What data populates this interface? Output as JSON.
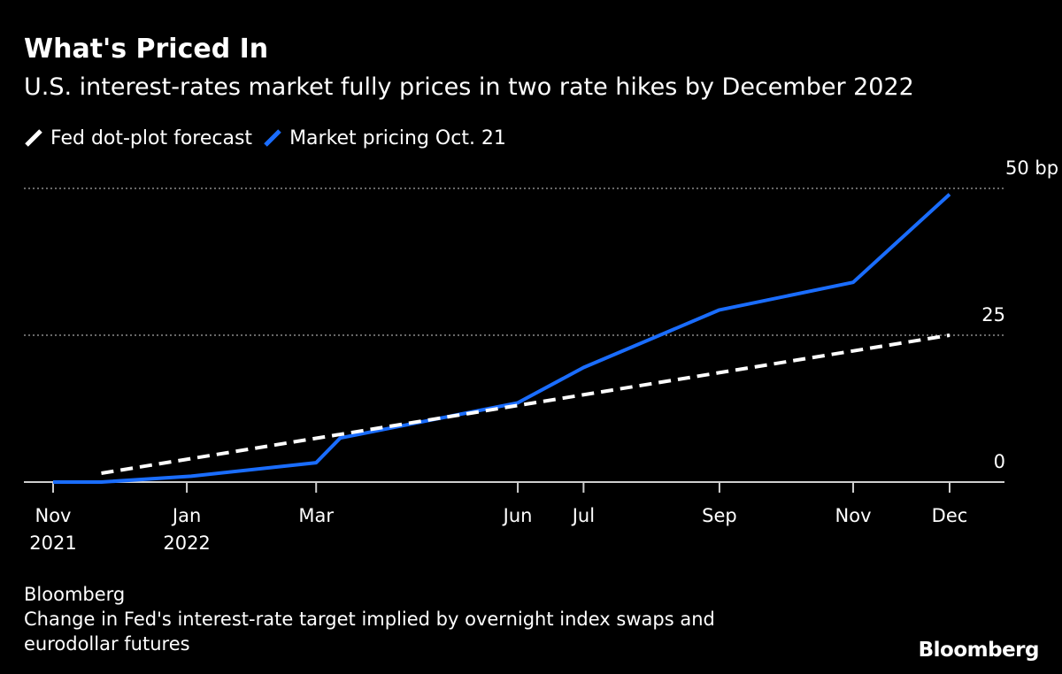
{
  "header": {
    "title": "What's Priced In",
    "subtitle": "U.S. interest-rates market fully prices in two rate hikes by December 2022"
  },
  "legend": [
    {
      "label": "Fed dot-plot forecast",
      "color": "#ffffff",
      "style": "dashed"
    },
    {
      "label": "Market pricing Oct. 21",
      "color": "#1a6dff",
      "style": "solid"
    }
  ],
  "footer": {
    "source": "Bloomberg",
    "note_lines": [
      "Change in Fed's interest-rate target implied by overnight index swaps and",
      "eurodollar futures"
    ],
    "brand": "Bloomberg"
  },
  "chart_data": {
    "type": "line",
    "title": "What's Priced In",
    "subtitle": "U.S. interest-rates market fully prices in two rate hikes by December 2022",
    "xlabel": "",
    "ylabel": "bp",
    "ylim": [
      0,
      50
    ],
    "xlim": [
      "2021-11-01",
      "2022-12-15"
    ],
    "yticks": [
      {
        "value": 0,
        "label": "0"
      },
      {
        "value": 25,
        "label": "25"
      },
      {
        "value": 50,
        "label": "50 bp"
      }
    ],
    "xticks": [
      {
        "date": "2021-11-01",
        "label": "Nov",
        "label2": "2021"
      },
      {
        "date": "2022-01-01",
        "label": "Jan",
        "label2": "2022"
      },
      {
        "date": "2022-03-01",
        "label": "Mar",
        "label2": ""
      },
      {
        "date": "2022-06-01",
        "label": "Jun",
        "label2": ""
      },
      {
        "date": "2022-07-01",
        "label": "Jul",
        "label2": ""
      },
      {
        "date": "2022-09-01",
        "label": "Sep",
        "label2": ""
      },
      {
        "date": "2022-11-01",
        "label": "Nov",
        "label2": ""
      },
      {
        "date": "2022-12-15",
        "label": "Dec",
        "label2": ""
      }
    ],
    "grid": "horizontal dotted",
    "legend_position": "top-left",
    "series": [
      {
        "name": "Fed dot-plot forecast",
        "color": "#ffffff",
        "dash": true,
        "points": [
          {
            "x": "2021-11-23",
            "y": 1.5
          },
          {
            "x": "2022-12-15",
            "y": 25
          }
        ]
      },
      {
        "name": "Market pricing Oct. 21",
        "color": "#1a6dff",
        "dash": false,
        "points": [
          {
            "x": "2021-11-01",
            "y": 0
          },
          {
            "x": "2021-11-23",
            "y": 0
          },
          {
            "x": "2022-01-03",
            "y": 1
          },
          {
            "x": "2022-03-01",
            "y": 3.3
          },
          {
            "x": "2022-03-12",
            "y": 7.5
          },
          {
            "x": "2022-06-01",
            "y": 13.5
          },
          {
            "x": "2022-07-01",
            "y": 19.5
          },
          {
            "x": "2022-09-01",
            "y": 29.3
          },
          {
            "x": "2022-11-01",
            "y": 34
          },
          {
            "x": "2022-12-15",
            "y": 49
          }
        ]
      }
    ]
  }
}
